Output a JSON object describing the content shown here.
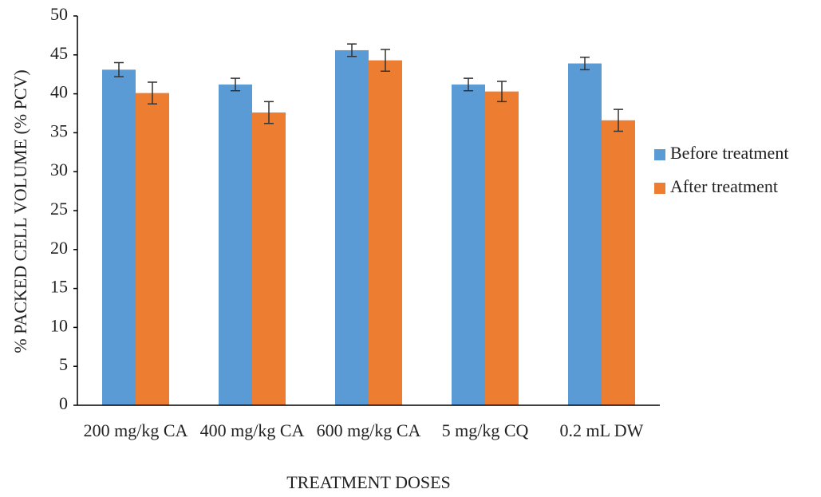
{
  "chart_data": {
    "type": "bar",
    "x_label": "TREATMENT DOSES",
    "y_label": "% PACKED CELL VOLUME (% PCV)",
    "categories": [
      "200 mg/kg CA",
      "400 mg/kg CA",
      "600 mg/kg CA",
      "5 mg/kg CQ",
      "0.2 mL DW"
    ],
    "series": [
      {
        "name": "Before treatment",
        "color": "#5b9bd5",
        "values": [
          43.1,
          41.2,
          45.6,
          41.2,
          43.9
        ],
        "errors": [
          0.9,
          0.8,
          0.8,
          0.8,
          0.8
        ]
      },
      {
        "name": "After treatment",
        "color": "#ed7d31",
        "values": [
          40.1,
          37.6,
          44.3,
          40.3,
          36.6
        ],
        "errors": [
          1.4,
          1.4,
          1.4,
          1.3,
          1.4
        ]
      }
    ],
    "ylim": [
      0,
      50
    ],
    "yticks": [
      0,
      5,
      10,
      15,
      20,
      25,
      30,
      35,
      40,
      45,
      50
    ],
    "grid": false,
    "legend": "right"
  }
}
